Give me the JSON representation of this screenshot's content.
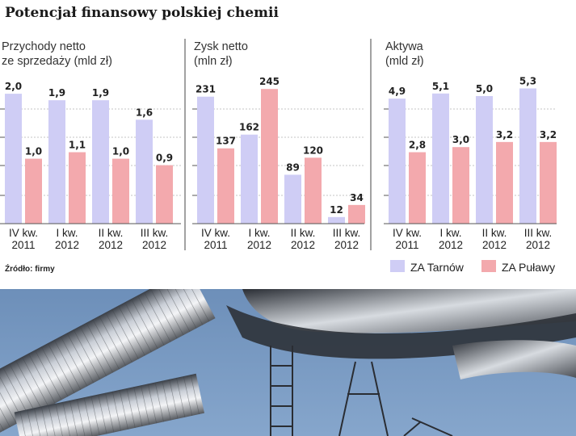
{
  "title": "Potencjał finansowy polskiej chemii",
  "source": "Źródło: firmy",
  "legend": [
    {
      "name": "ZA Tarnów",
      "color": "#cfcdf5"
    },
    {
      "name": "ZA Puławy",
      "color": "#f3a9ad"
    }
  ],
  "chart_data": [
    {
      "type": "bar",
      "title": "Przychody netto ze sprzedaży (mld zł)",
      "title_lines": [
        "Przychody netto",
        "ze sprzedaży (mld zł)"
      ],
      "categories": [
        [
          "IV kw.",
          "2011"
        ],
        [
          "I kw.",
          "2012"
        ],
        [
          "II kw.",
          "2012"
        ],
        [
          "III kw.",
          "2012"
        ]
      ],
      "ylim": [
        0,
        2.2
      ],
      "series": [
        {
          "name": "ZA Tarnów",
          "values": [
            2.0,
            1.9,
            1.9,
            1.6
          ],
          "labels": [
            "2,0",
            "1,9",
            "1,9",
            "1,6"
          ]
        },
        {
          "name": "ZA Puławy",
          "values": [
            1.0,
            1.1,
            1.0,
            0.9
          ],
          "labels": [
            "1,0",
            "1,1",
            "1,0",
            "0,9"
          ]
        }
      ]
    },
    {
      "type": "bar",
      "title": "Zysk netto (mln zł)",
      "title_lines": [
        "Zysk netto",
        "(mln zł)"
      ],
      "categories": [
        [
          "IV kw.",
          "2011"
        ],
        [
          "I kw.",
          "2012"
        ],
        [
          "II kw.",
          "2012"
        ],
        [
          "III kw.",
          "2012"
        ]
      ],
      "ylim": [
        0,
        260
      ],
      "series": [
        {
          "name": "ZA Tarnów",
          "values": [
            231,
            162,
            89,
            12
          ],
          "labels": [
            "231",
            "162",
            "89",
            "12"
          ]
        },
        {
          "name": "ZA Puławy",
          "values": [
            137,
            245,
            120,
            34
          ],
          "labels": [
            "137",
            "245",
            "120",
            "34"
          ]
        }
      ]
    },
    {
      "type": "bar",
      "title": "Aktywa (mld zł)",
      "title_lines": [
        "Aktywa",
        "(mld zł)"
      ],
      "categories": [
        [
          "IV kw.",
          "2011"
        ],
        [
          "I kw.",
          "2012"
        ],
        [
          "II kw.",
          "2012"
        ],
        [
          "III kw.",
          "2012"
        ]
      ],
      "ylim": [
        0,
        5.6
      ],
      "series": [
        {
          "name": "ZA Tarnów",
          "values": [
            4.9,
            5.1,
            5.0,
            5.3
          ],
          "labels": [
            "4,9",
            "5,1",
            "5,0",
            "5,3"
          ]
        },
        {
          "name": "ZA Puławy",
          "values": [
            2.8,
            3.0,
            3.2,
            3.2
          ],
          "labels": [
            "2,8",
            "3,0",
            "3,2",
            "3,2"
          ]
        }
      ]
    }
  ]
}
